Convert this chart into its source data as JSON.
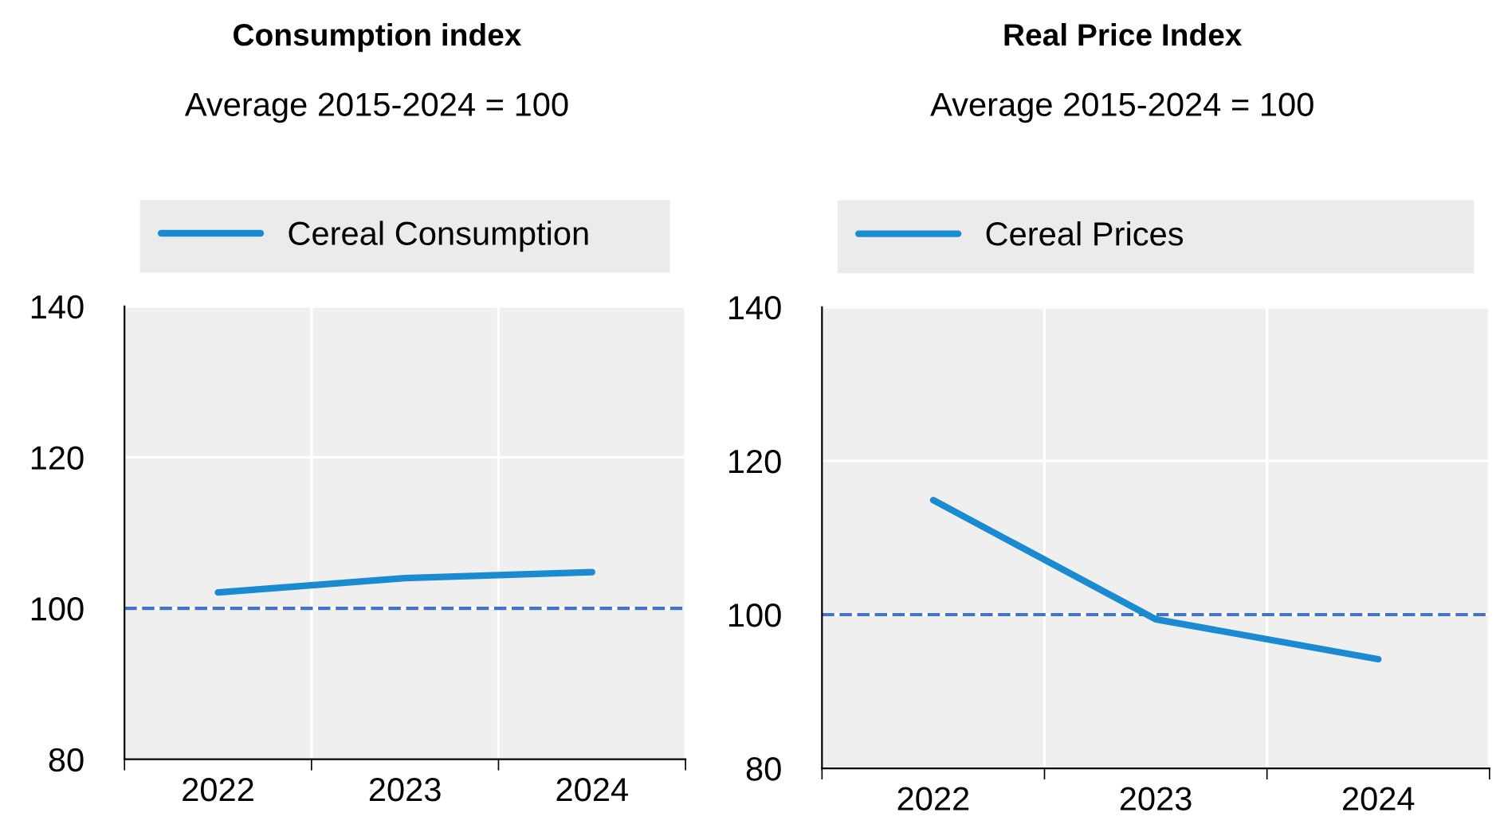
{
  "chart_data": [
    {
      "type": "line",
      "title": "Consumption index",
      "subtitle": "Average 2015-2024 = 100",
      "categories": [
        "2022",
        "2023",
        "2024"
      ],
      "series": [
        {
          "name": "Cereal Consumption",
          "color": "#1a8bd1",
          "values": [
            102.1,
            104.0,
            104.8
          ]
        }
      ],
      "ylim": [
        80,
        140
      ],
      "yticks": [
        80,
        100,
        120,
        140
      ],
      "grid": true,
      "legend": "top",
      "line_style": "solid",
      "marker": "none",
      "ref_lines": [
        {
          "axis": "y",
          "value": 100,
          "color": "#4472c4",
          "line_style": "dashed"
        }
      ]
    },
    {
      "type": "line",
      "title": "Real Price Index",
      "subtitle": "Average 2015-2024 = 100",
      "categories": [
        "2022",
        "2023",
        "2024"
      ],
      "series": [
        {
          "name": "Cereal Prices",
          "color": "#1a8bd1",
          "values": [
            114.9,
            99.4,
            94.2
          ]
        }
      ],
      "ylim": [
        80,
        140
      ],
      "yticks": [
        80,
        100,
        120,
        140
      ],
      "grid": true,
      "legend": "top",
      "line_style": "solid",
      "marker": "none",
      "ref_lines": [
        {
          "axis": "y",
          "value": 100,
          "color": "#4472c4",
          "line_style": "dashed"
        }
      ]
    }
  ]
}
